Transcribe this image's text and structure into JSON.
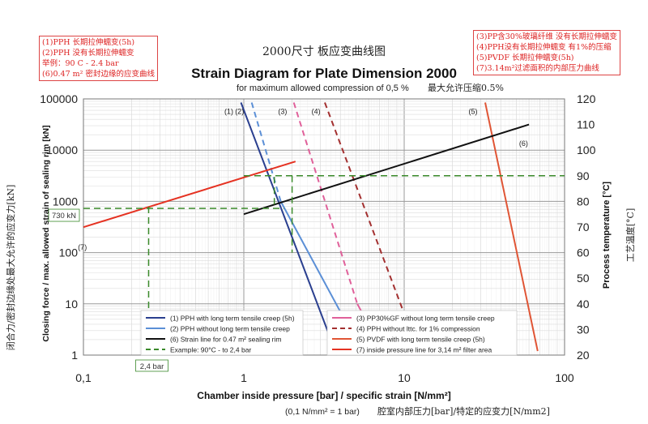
{
  "chart_data": {
    "type": "line",
    "cn_title": "2000尺寸    板应变曲线图",
    "title": "Strain Diagram for Plate Dimension 2000",
    "subtitle": "for maximum allowed compression of 0,5 %",
    "cn_subtitle": "最大允许压缩0.5%",
    "xlabel": "Chamber inside pressure [bar] / specific strain [N/mm²]",
    "xlabel_note": "(0,1 N/mm² = 1 bar)",
    "cn_xlabel": "腔室内部压力[bar]/特定的应变力[N/mm2]",
    "ylabel_left": "Closing force / max. allowed strain of sealing rim [kN]",
    "cn_ylabel_left": "闭合力/密封边缘处最大允许的应变力[kN]",
    "ylabel_right": "Process temperature [°C]",
    "cn_ylabel_right": "工艺温度[°C]",
    "x_scale": "log",
    "xlim": [
      0.1,
      100
    ],
    "ylim_left": [
      1,
      100000
    ],
    "ylim_right": [
      20,
      120
    ],
    "x_tick_labels": [
      "0,1",
      "1",
      "10",
      "100"
    ],
    "x_ticks": [
      0.1,
      1,
      10,
      100
    ],
    "y_left_ticks": [
      1,
      10,
      100,
      1000,
      10000,
      100000
    ],
    "y_left_tick_labels": [
      "1",
      "10",
      "100",
      "1000",
      "10000",
      "100000"
    ],
    "y_right_ticks": [
      20,
      30,
      40,
      50,
      60,
      70,
      80,
      90,
      100,
      110,
      120
    ],
    "grid": true,
    "series": [
      {
        "id": "s1",
        "name": "(1) PPH with long term tensile creep (5h)",
        "label": "(1)",
        "axis": "left",
        "color": "#2a3f8f",
        "dash": "",
        "points": [
          [
            0.96,
            85000
          ],
          [
            3.8,
            1
          ]
        ]
      },
      {
        "id": "s2",
        "name": "(2) PPH without long term tensile creep",
        "label": "(2)",
        "axis": "left",
        "color": "#5b8fd6",
        "dash": "",
        "points": [
          [
            1.7,
            1000
          ],
          [
            5.6,
            1
          ]
        ]
      },
      {
        "id": "s2d",
        "name": "",
        "label": "",
        "axis": "left",
        "color": "#5b8fd6",
        "dash": "7,5",
        "points": [
          [
            1.12,
            85000
          ],
          [
            1.7,
            1000
          ]
        ]
      },
      {
        "id": "s3",
        "name": "(3) PP30%GF without long term tensile creep",
        "label": "(3)",
        "axis": "left",
        "color": "#e0609a",
        "dash": "",
        "points": [
          [
            5.1,
            10
          ],
          [
            7.6,
            1
          ]
        ]
      },
      {
        "id": "s3d",
        "name": "",
        "label": "",
        "axis": "left",
        "color": "#e0609a",
        "dash": "7,5",
        "points": [
          [
            2.05,
            85000
          ],
          [
            5.1,
            10
          ]
        ]
      },
      {
        "id": "s4",
        "name": "(4) PPH without lttc. for 1% compression",
        "label": "(4)",
        "axis": "left",
        "color": "#a33030",
        "dash": "7,5",
        "points": [
          [
            3.2,
            85000
          ],
          [
            12.5,
            1
          ]
        ]
      },
      {
        "id": "s5",
        "name": "(5) PVDF with long term tensile creep (5h)",
        "label": "(5)",
        "axis": "left",
        "color": "#e05535",
        "dash": "",
        "points": [
          [
            32,
            85000
          ],
          [
            68,
            1.2
          ]
        ]
      },
      {
        "id": "s6",
        "name": "(6) Strain line for 0.47 m² sealing rim",
        "label": "(6)",
        "axis": "right",
        "color": "#111111",
        "dash": "",
        "points": [
          [
            1,
            75
          ],
          [
            60,
            110
          ]
        ]
      },
      {
        "id": "s7",
        "name": "(7) inside pressure line for 3,14 m² filter area",
        "label": "(7)",
        "axis": "left",
        "color": "#e53222",
        "dash": "",
        "points": [
          [
            0.1,
            314
          ],
          [
            2.1,
            6000
          ]
        ]
      },
      {
        "id": "ex",
        "name": "Example: 90°C - to 2,4 bar",
        "label": "",
        "axis": "left",
        "color": "#3a8a2a",
        "dash": "8,5",
        "points": []
      }
    ],
    "example": {
      "temperature_c": 90,
      "pressure_bar": 2.4,
      "force_kn": 730,
      "force_label": "730 kN",
      "pressure_label": "2,4 bar",
      "legend": "Example: 90°C - to 2,4 bar"
    },
    "legend_placement": "bottom-center"
  },
  "notes": {
    "left": [
      "(1)PPH 长期拉伸蠕变(5h)",
      "(2)PPH 没有长期拉伸蠕变",
      "举例：90 C - 2.4 bar",
      "(6)0.47 m² 密封边缘的应变曲线"
    ],
    "right": [
      "(3)PP含30%玻璃纤维 没有长期拉伸蠕变",
      "(4)PPH没有长期拉伸蠕变 有1%的压缩",
      "(5)PVDF 长期拉伸蠕变(5h)",
      "(7)3.14m²过滤面积的内部压力曲线"
    ]
  }
}
